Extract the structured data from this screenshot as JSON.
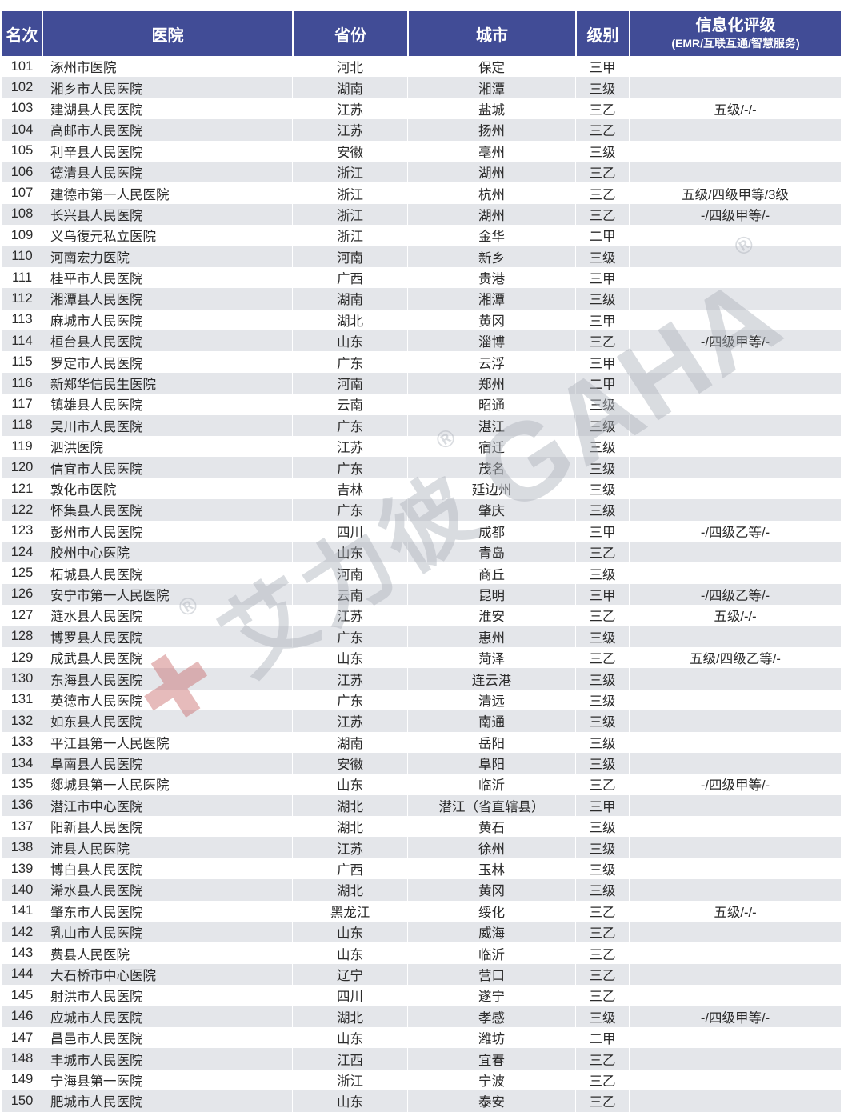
{
  "table": {
    "columns": [
      {
        "key": "rank",
        "label": "名次"
      },
      {
        "key": "hospital",
        "label": "医院"
      },
      {
        "key": "province",
        "label": "省份"
      },
      {
        "key": "city",
        "label": "城市"
      },
      {
        "key": "level",
        "label": "级别"
      },
      {
        "key": "rating",
        "label": "信息化评级",
        "sublabel": "(EMR/互联互通/智慧服务)"
      }
    ],
    "rows": [
      [
        101,
        "涿州市医院",
        "河北",
        "保定",
        "三甲",
        ""
      ],
      [
        102,
        "湘乡市人民医院",
        "湖南",
        "湘潭",
        "三级",
        ""
      ],
      [
        103,
        "建湖县人民医院",
        "江苏",
        "盐城",
        "三乙",
        "五级/-/-"
      ],
      [
        104,
        "高邮市人民医院",
        "江苏",
        "扬州",
        "三乙",
        ""
      ],
      [
        105,
        "利辛县人民医院",
        "安徽",
        "亳州",
        "三级",
        ""
      ],
      [
        106,
        "德清县人民医院",
        "浙江",
        "湖州",
        "三乙",
        ""
      ],
      [
        107,
        "建德市第一人民医院",
        "浙江",
        "杭州",
        "三乙",
        "五级/四级甲等/3级"
      ],
      [
        108,
        "长兴县人民医院",
        "浙江",
        "湖州",
        "三乙",
        "-/四级甲等/-"
      ],
      [
        109,
        "义乌復元私立医院",
        "浙江",
        "金华",
        "二甲",
        ""
      ],
      [
        110,
        "河南宏力医院",
        "河南",
        "新乡",
        "三级",
        ""
      ],
      [
        111,
        "桂平市人民医院",
        "广西",
        "贵港",
        "三甲",
        ""
      ],
      [
        112,
        "湘潭县人民医院",
        "湖南",
        "湘潭",
        "三级",
        ""
      ],
      [
        113,
        "麻城市人民医院",
        "湖北",
        "黄冈",
        "三甲",
        ""
      ],
      [
        114,
        "桓台县人民医院",
        "山东",
        "淄博",
        "三乙",
        "-/四级甲等/-"
      ],
      [
        115,
        "罗定市人民医院",
        "广东",
        "云浮",
        "三甲",
        ""
      ],
      [
        116,
        "新郑华信民生医院",
        "河南",
        "郑州",
        "二甲",
        ""
      ],
      [
        117,
        "镇雄县人民医院",
        "云南",
        "昭通",
        "三级",
        ""
      ],
      [
        118,
        "吴川市人民医院",
        "广东",
        "湛江",
        "三级",
        ""
      ],
      [
        119,
        "泗洪医院",
        "江苏",
        "宿迁",
        "三级",
        ""
      ],
      [
        120,
        "信宜市人民医院",
        "广东",
        "茂名",
        "三级",
        ""
      ],
      [
        121,
        "敦化市医院",
        "吉林",
        "延边州",
        "三级",
        ""
      ],
      [
        122,
        "怀集县人民医院",
        "广东",
        "肇庆",
        "三级",
        ""
      ],
      [
        123,
        "彭州市人民医院",
        "四川",
        "成都",
        "三甲",
        "-/四级乙等/-"
      ],
      [
        124,
        "胶州中心医院",
        "山东",
        "青岛",
        "三乙",
        ""
      ],
      [
        125,
        "柘城县人民医院",
        "河南",
        "商丘",
        "三级",
        ""
      ],
      [
        126,
        "安宁市第一人民医院",
        "云南",
        "昆明",
        "三甲",
        "-/四级乙等/-"
      ],
      [
        127,
        "涟水县人民医院",
        "江苏",
        "淮安",
        "三乙",
        "五级/-/-"
      ],
      [
        128,
        "博罗县人民医院",
        "广东",
        "惠州",
        "三级",
        ""
      ],
      [
        129,
        "成武县人民医院",
        "山东",
        "菏泽",
        "三乙",
        "五级/四级乙等/-"
      ],
      [
        130,
        "东海县人民医院",
        "江苏",
        "连云港",
        "三级",
        ""
      ],
      [
        131,
        "英德市人民医院",
        "广东",
        "清远",
        "三级",
        ""
      ],
      [
        132,
        "如东县人民医院",
        "江苏",
        "南通",
        "三级",
        ""
      ],
      [
        133,
        "平江县第一人民医院",
        "湖南",
        "岳阳",
        "三级",
        ""
      ],
      [
        134,
        "阜南县人民医院",
        "安徽",
        "阜阳",
        "三级",
        ""
      ],
      [
        135,
        "郯城县第一人民医院",
        "山东",
        "临沂",
        "三乙",
        "-/四级甲等/-"
      ],
      [
        136,
        "潜江市中心医院",
        "湖北",
        "潜江（省直辖县）",
        "三甲",
        ""
      ],
      [
        137,
        "阳新县人民医院",
        "湖北",
        "黄石",
        "三级",
        ""
      ],
      [
        138,
        "沛县人民医院",
        "江苏",
        "徐州",
        "三级",
        ""
      ],
      [
        139,
        "博白县人民医院",
        "广西",
        "玉林",
        "三级",
        ""
      ],
      [
        140,
        "浠水县人民医院",
        "湖北",
        "黄冈",
        "三级",
        ""
      ],
      [
        141,
        "肇东市人民医院",
        "黑龙江",
        "绥化",
        "三乙",
        "五级/-/-"
      ],
      [
        142,
        "乳山市人民医院",
        "山东",
        "威海",
        "三乙",
        ""
      ],
      [
        143,
        "费县人民医院",
        "山东",
        "临沂",
        "三乙",
        ""
      ],
      [
        144,
        "大石桥市中心医院",
        "辽宁",
        "营口",
        "三乙",
        ""
      ],
      [
        145,
        "射洪市人民医院",
        "四川",
        "遂宁",
        "三乙",
        ""
      ],
      [
        146,
        "应城市人民医院",
        "湖北",
        "孝感",
        "三级",
        "-/四级甲等/-"
      ],
      [
        147,
        "昌邑市人民医院",
        "山东",
        "潍坊",
        "二甲",
        ""
      ],
      [
        148,
        "丰城市人民医院",
        "江西",
        "宜春",
        "三乙",
        ""
      ],
      [
        149,
        "宁海县第一医院",
        "浙江",
        "宁波",
        "三乙",
        ""
      ],
      [
        150,
        "肥城市人民医院",
        "山东",
        "泰安",
        "三乙",
        ""
      ]
    ]
  },
  "watermark": {
    "cross": "✚",
    "reg": "®",
    "cn": "艾力彼",
    "en": "GAHA"
  },
  "colors": {
    "header_bg": "#414C96",
    "header_text": "#FFFFFF",
    "row_bg": "#FFFFFF",
    "row_alt_bg": "#E4E6EA",
    "body_text": "#2B2B2B",
    "watermark_gray": "#ADB2BB",
    "watermark_red": "#C96A6A"
  }
}
